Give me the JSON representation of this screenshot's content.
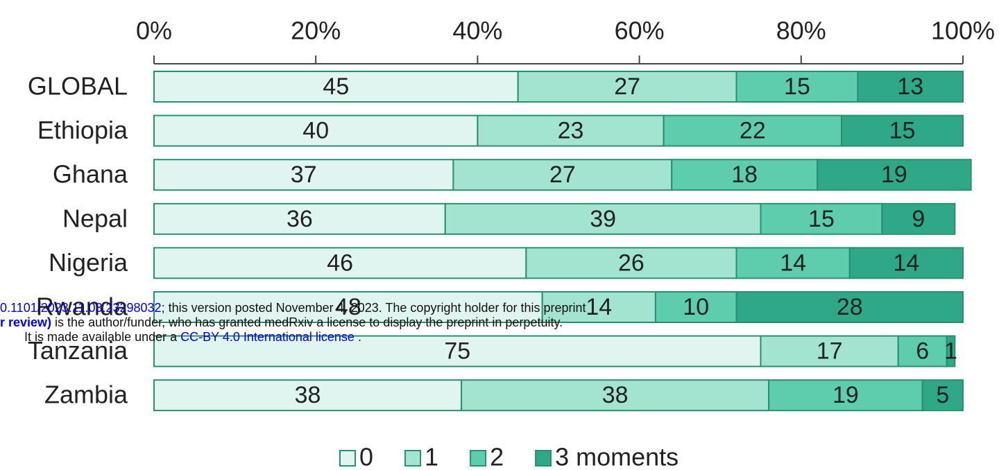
{
  "chart_data": {
    "type": "stacked_bar_horizontal",
    "categories": [
      "GLOBAL",
      "Ethiopia",
      "Ghana",
      "Nepal",
      "Nigeria",
      "Rwanda",
      "Tanzania",
      "Zambia"
    ],
    "series": [
      {
        "name": "0",
        "color": "#e0f5ef",
        "values": [
          45,
          40,
          37,
          36,
          46,
          48,
          75,
          38
        ]
      },
      {
        "name": "1",
        "color": "#a3e4d0",
        "values": [
          27,
          23,
          27,
          39,
          26,
          14,
          17,
          38
        ]
      },
      {
        "name": "2",
        "color": "#5ecdae",
        "values": [
          15,
          22,
          18,
          15,
          14,
          10,
          6,
          19
        ]
      },
      {
        "name": "3 moments",
        "color": "#2ea886",
        "values": [
          13,
          15,
          19,
          9,
          14,
          28,
          1,
          5
        ]
      }
    ],
    "xlim": [
      0,
      100
    ],
    "xticks": [
      {
        "value": 0,
        "label": "0%"
      },
      {
        "value": 20,
        "label": "20%"
      },
      {
        "value": 40,
        "label": "40%"
      },
      {
        "value": 60,
        "label": "60%"
      },
      {
        "value": 80,
        "label": "80%"
      },
      {
        "value": 100,
        "label": "100%"
      }
    ],
    "legend": "bottom"
  },
  "overlay": {
    "lines": [
      [
        {
          "text": "0.1101/2023.11.03.23298032",
          "link": true
        },
        {
          "text": "; this version posted November 4, 2023. The copyright holder for this preprint",
          "link": false
        }
      ],
      [
        {
          "text": "r review)",
          "link": true,
          "bold": true
        },
        {
          "text": " is the author/funder, who has granted medRxiv a license to display the preprint in perpetuity.",
          "link": false
        }
      ],
      [
        {
          "text": "It is made available under a ",
          "link": false
        },
        {
          "text": "CC-BY 4.0 International license",
          "link": true
        },
        {
          "text": " .",
          "link": false
        }
      ]
    ]
  }
}
